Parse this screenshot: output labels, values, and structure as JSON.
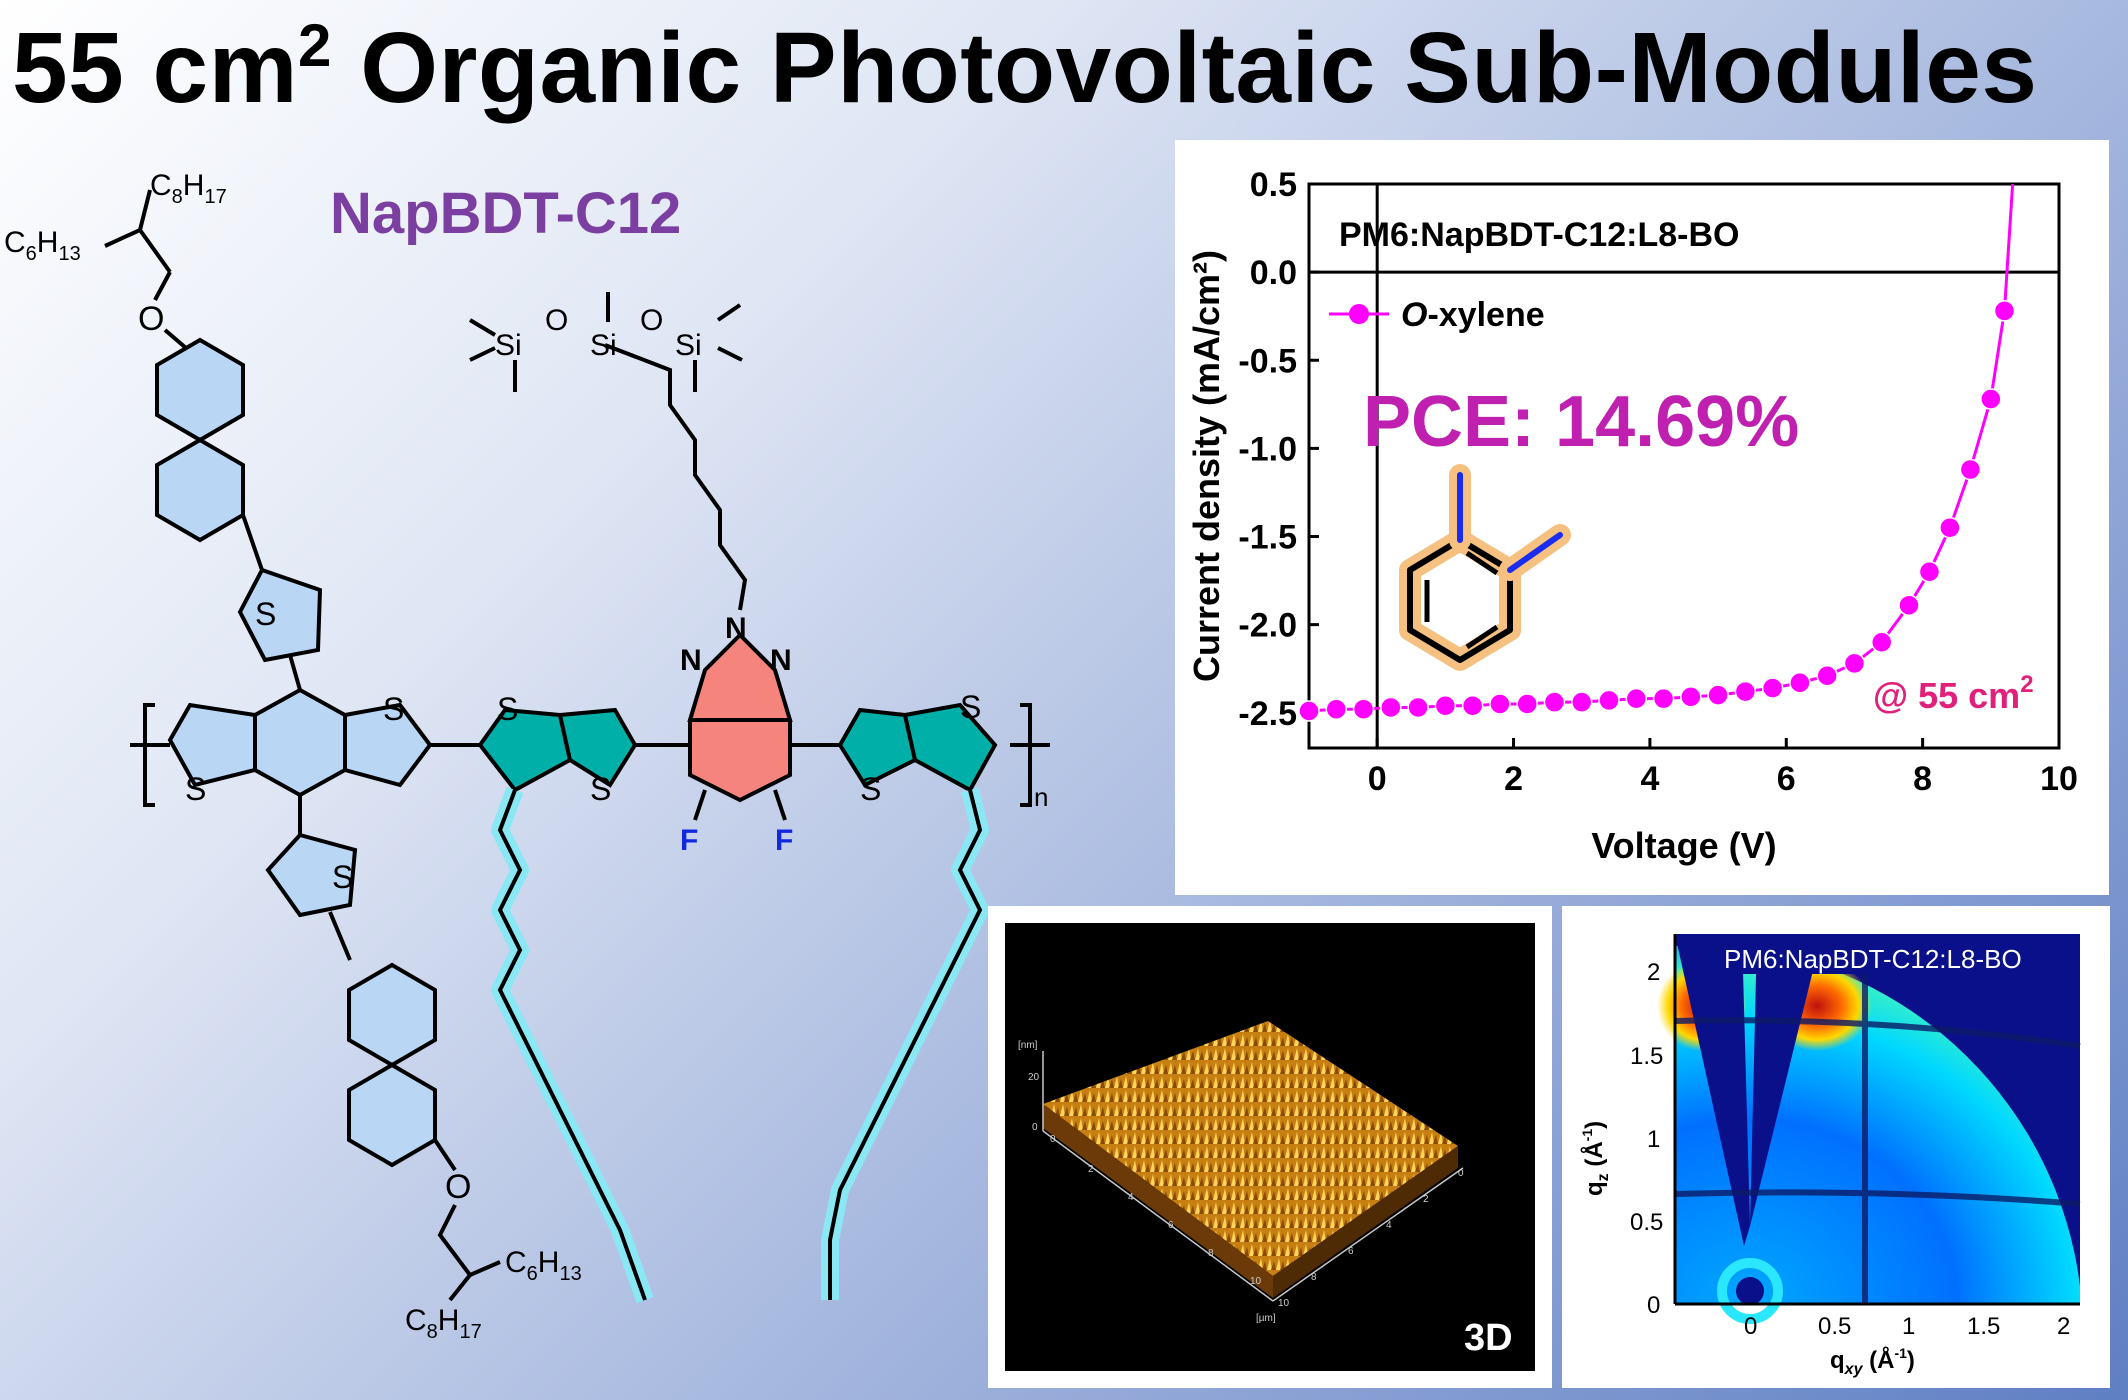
{
  "title": {
    "main": "55 cm",
    "sup": "2",
    "rest": " Organic Photovoltaic Sub-Modules"
  },
  "molecule": {
    "name": "NapBDT-C12",
    "labels": {
      "c8h17": "C8H17",
      "c6h13": "C6H13",
      "O": "O",
      "S": "S",
      "N": "N",
      "F": "F",
      "Si": "Si",
      "n": "n"
    }
  },
  "chart_data": {
    "type": "line",
    "xlabel": "Voltage (V)",
    "ylabel": "Current density (mA/cm²)",
    "xlim": [
      -1,
      10
    ],
    "ylim": [
      -2.7,
      0.5
    ],
    "xticks": [
      0,
      2,
      4,
      6,
      8,
      10
    ],
    "yticks": [
      0.5,
      0.0,
      -0.5,
      -1.0,
      -1.5,
      -2.0,
      -2.5
    ],
    "box_label": "PM6:NapBDT-C12:L8-BO",
    "pce_label": "PCE: 14.69%",
    "area_label": "@ 55 cm",
    "area_sup": "2",
    "series": [
      {
        "name": "O-xylene",
        "name_italic": "O",
        "name_rest": "-xylene",
        "color": "#ff00ff",
        "x": [
          -1.0,
          -0.6,
          -0.2,
          0.2,
          0.6,
          1.0,
          1.4,
          1.8,
          2.2,
          2.6,
          3.0,
          3.4,
          3.8,
          4.2,
          4.6,
          5.0,
          5.4,
          5.8,
          6.2,
          6.6,
          7.0,
          7.4,
          7.8,
          8.1,
          8.4,
          8.7,
          9.0,
          9.2
        ],
        "y": [
          -2.49,
          -2.48,
          -2.48,
          -2.47,
          -2.47,
          -2.46,
          -2.46,
          -2.45,
          -2.45,
          -2.44,
          -2.44,
          -2.43,
          -2.42,
          -2.42,
          -2.41,
          -2.4,
          -2.38,
          -2.36,
          -2.33,
          -2.29,
          -2.22,
          -2.1,
          -1.89,
          -1.7,
          -1.45,
          -1.12,
          -0.72,
          -0.22
        ]
      }
    ]
  },
  "afm": {
    "label": "3D",
    "z_unit": "[nm]",
    "xy_unit": "[µm]",
    "z_ticks": [
      "20",
      "0"
    ],
    "x_ticks": [
      "0",
      "2",
      "4",
      "6",
      "8",
      "10"
    ],
    "y_ticks": [
      "0",
      "2",
      "4",
      "6",
      "8",
      "10"
    ]
  },
  "giwaxs": {
    "label": "PM6:NapBDT-C12:L8-BO",
    "xlabel": "qxy (Å-1)",
    "ylabel": "qz (Å-1)",
    "xticks": [
      "0",
      "0.5",
      "1",
      "1.5",
      "2"
    ],
    "yticks": [
      "0",
      "0.5",
      "1",
      "1.5",
      "2"
    ]
  }
}
